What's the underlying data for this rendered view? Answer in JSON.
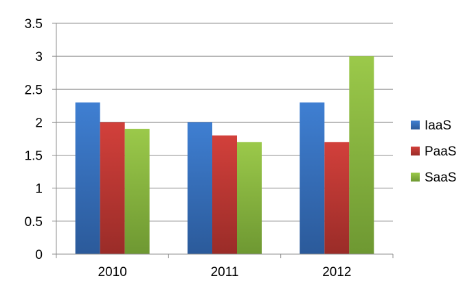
{
  "chart_data": {
    "type": "bar",
    "title": "",
    "xlabel": "",
    "ylabel": "",
    "categories": [
      "2010",
      "2011",
      "2012"
    ],
    "series": [
      {
        "name": "IaaS",
        "values": [
          2.3,
          2.0,
          2.3
        ],
        "color": "#3a74c4"
      },
      {
        "name": "PaaS",
        "values": [
          2.0,
          1.8,
          1.7
        ],
        "color": "#c43a36"
      },
      {
        "name": "SaaS",
        "values": [
          1.9,
          1.7,
          3.0
        ],
        "color": "#8fbf3f"
      }
    ],
    "ylim": [
      0,
      3.5
    ],
    "yticks": [
      "0",
      "0.5",
      "1",
      "1.5",
      "2",
      "2.5",
      "3",
      "3.5"
    ],
    "grid": true,
    "legend": "right"
  }
}
